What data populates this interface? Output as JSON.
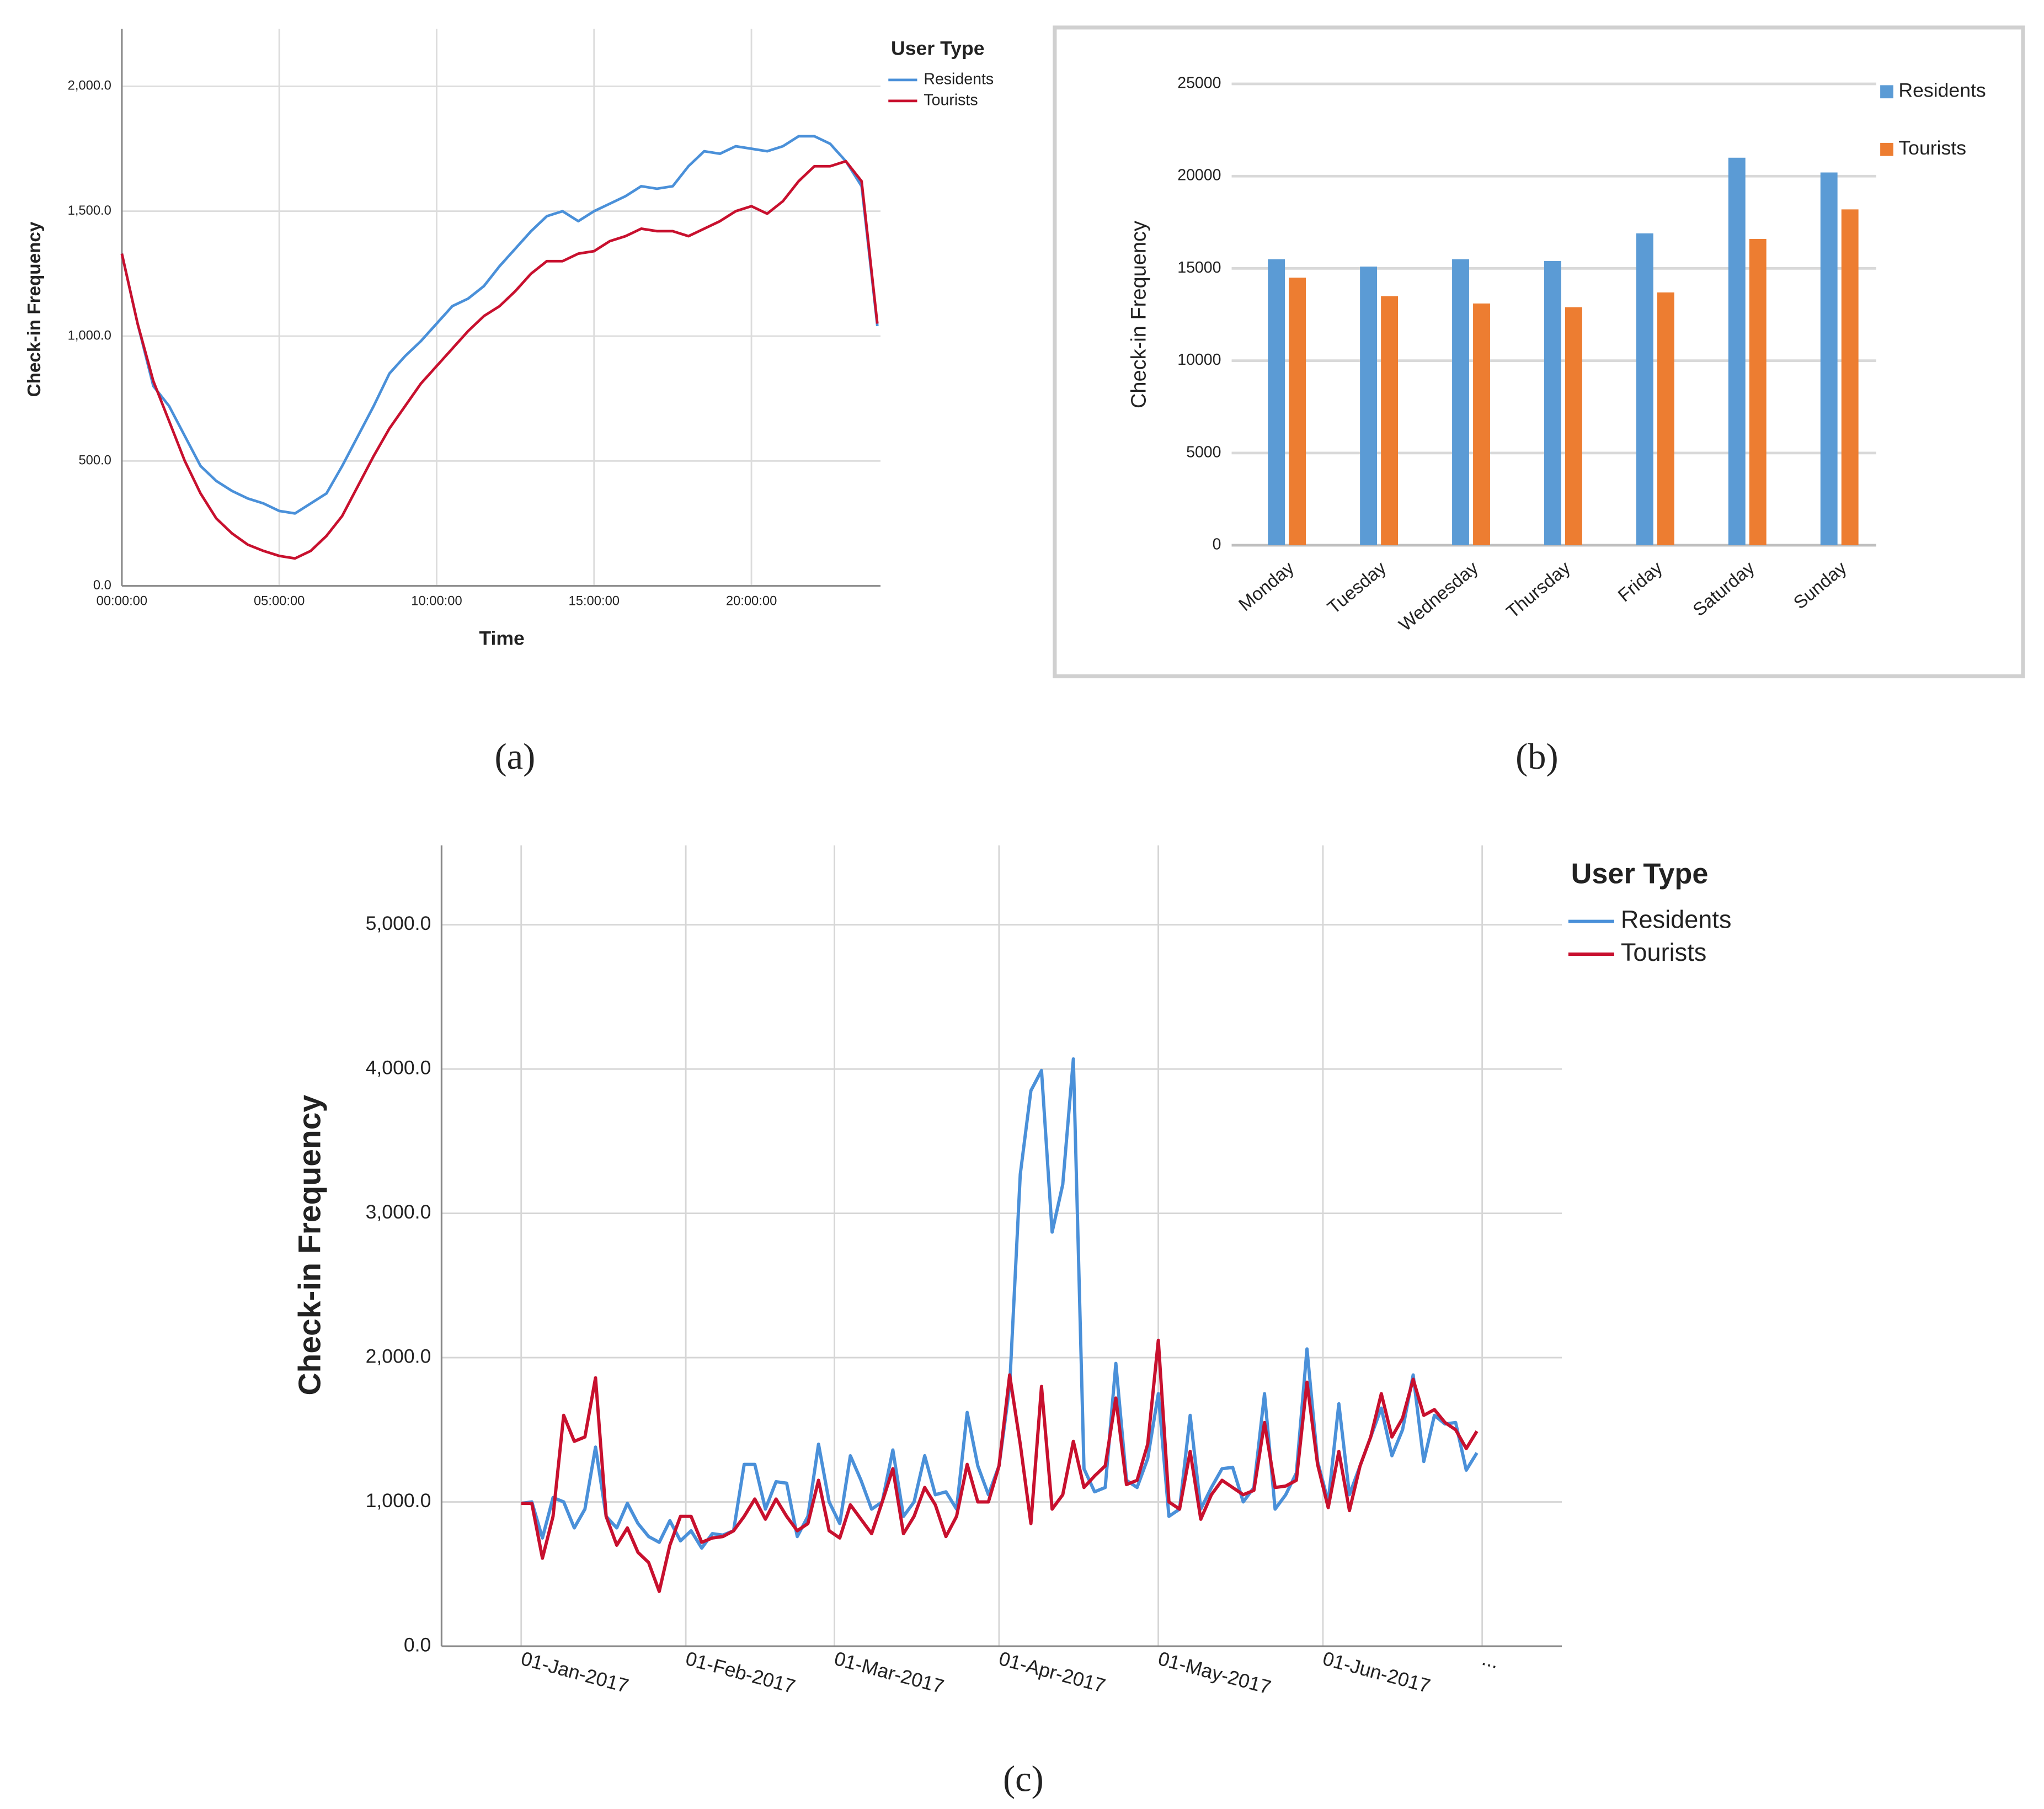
{
  "chart_data": [
    {
      "type": "line",
      "caption": "(a)",
      "xlabel": "Time",
      "ylabel": "Check-in Frequency",
      "legend_title": "User Type",
      "legend": "upper right",
      "grid": true,
      "xlim": [
        0,
        24.1
      ],
      "xticks": [
        {
          "value": 0,
          "label": "00:00:00"
        },
        {
          "value": 5,
          "label": "05:00:00"
        },
        {
          "value": 10,
          "label": "10:00:00"
        },
        {
          "value": 15,
          "label": "15:00:00"
        },
        {
          "value": 20,
          "label": "20:00:00"
        }
      ],
      "ylim": [
        0,
        2230
      ],
      "yticks": [
        {
          "value": 0,
          "label": "0.0"
        },
        {
          "value": 500,
          "label": "500.0"
        },
        {
          "value": 1000,
          "label": "1,000.0"
        },
        {
          "value": 1500,
          "label": "1,500.0"
        },
        {
          "value": 2000,
          "label": "2,000.0"
        }
      ],
      "x": [
        0,
        0.5,
        1,
        1.5,
        2,
        2.5,
        3,
        3.5,
        4,
        4.5,
        5,
        5.5,
        6,
        6.5,
        7,
        7.5,
        8,
        8.5,
        9,
        9.5,
        10,
        10.5,
        11,
        11.5,
        12,
        12.5,
        13,
        13.5,
        14,
        14.5,
        15,
        15.5,
        16,
        16.5,
        17,
        17.5,
        18,
        18.5,
        19,
        19.5,
        20,
        20.5,
        21,
        21.5,
        22,
        22.5,
        23,
        23.5,
        24
      ],
      "series": [
        {
          "name": "Residents",
          "color": "#4a90d9",
          "values": [
            1330,
            1050,
            800,
            720,
            600,
            480,
            420,
            380,
            350,
            330,
            300,
            290,
            330,
            370,
            480,
            600,
            720,
            850,
            920,
            980,
            1050,
            1120,
            1150,
            1200,
            1280,
            1350,
            1420,
            1480,
            1500,
            1460,
            1500,
            1530,
            1560,
            1600,
            1590,
            1600,
            1680,
            1740,
            1730,
            1760,
            1750,
            1740,
            1760,
            1800,
            1800,
            1770,
            1700,
            1600,
            1040
          ]
        },
        {
          "name": "Tourists",
          "color": "#c8102e",
          "values": [
            1330,
            1050,
            820,
            660,
            500,
            370,
            270,
            210,
            165,
            140,
            120,
            110,
            140,
            200,
            280,
            400,
            520,
            630,
            720,
            810,
            880,
            950,
            1020,
            1080,
            1120,
            1180,
            1250,
            1300,
            1300,
            1330,
            1340,
            1380,
            1400,
            1430,
            1420,
            1420,
            1400,
            1430,
            1460,
            1500,
            1520,
            1490,
            1540,
            1620,
            1680,
            1680,
            1700,
            1620,
            1050
          ]
        }
      ]
    },
    {
      "type": "bar",
      "caption": "(b)",
      "ylabel": "Check-in Frequency",
      "legend": "upper right",
      "grid": true,
      "categories": [
        "Monday",
        "Tuesday",
        "Wednesday",
        "Thursday",
        "Friday",
        "Saturday",
        "Sunday"
      ],
      "ylim": [
        0,
        25000
      ],
      "yticks": [
        0,
        5000,
        10000,
        15000,
        20000,
        25000
      ],
      "series": [
        {
          "name": "Residents",
          "color": "#5b9bd5",
          "values": [
            15500,
            15100,
            15500,
            15400,
            16900,
            21000,
            20200
          ]
        },
        {
          "name": "Tourists",
          "color": "#ed7d31",
          "values": [
            14500,
            13500,
            13100,
            12900,
            13700,
            16600,
            18200
          ]
        }
      ]
    },
    {
      "type": "line",
      "caption": "(c)",
      "ylabel": "Check-in Frequency",
      "legend_title": "User Type",
      "legend": "upper right",
      "grid": true,
      "xlim": [
        "2016-12-17",
        "2017-07-16"
      ],
      "xticks": [
        {
          "value": "2017-01-01",
          "label": "01-Jan-2017"
        },
        {
          "value": "2017-02-01",
          "label": "01-Feb-2017"
        },
        {
          "value": "2017-03-01",
          "label": "01-Mar-2017"
        },
        {
          "value": "2017-04-01",
          "label": "01-Apr-2017"
        },
        {
          "value": "2017-05-01",
          "label": "01-May-2017"
        },
        {
          "value": "2017-06-01",
          "label": "01-Jun-2017"
        },
        {
          "value": "2017-07-01",
          "label": "..."
        }
      ],
      "ylim": [
        0,
        5550
      ],
      "yticks": [
        {
          "value": 0,
          "label": "0.0"
        },
        {
          "value": 1000,
          "label": "1,000.0"
        },
        {
          "value": 2000,
          "label": "2,000.0"
        },
        {
          "value": 3000,
          "label": "3,000.0"
        },
        {
          "value": 4000,
          "label": "4,000.0"
        },
        {
          "value": 5000,
          "label": "5,000.0"
        }
      ],
      "x": [
        "2017-01-01",
        "2017-01-03",
        "2017-01-05",
        "2017-01-07",
        "2017-01-09",
        "2017-01-11",
        "2017-01-13",
        "2017-01-15",
        "2017-01-17",
        "2017-01-19",
        "2017-01-21",
        "2017-01-23",
        "2017-01-25",
        "2017-01-27",
        "2017-01-29",
        "2017-01-31",
        "2017-02-02",
        "2017-02-04",
        "2017-02-06",
        "2017-02-08",
        "2017-02-10",
        "2017-02-12",
        "2017-02-14",
        "2017-02-16",
        "2017-02-18",
        "2017-02-20",
        "2017-02-22",
        "2017-02-24",
        "2017-02-26",
        "2017-02-28",
        "2017-03-02",
        "2017-03-04",
        "2017-03-06",
        "2017-03-08",
        "2017-03-10",
        "2017-03-12",
        "2017-03-14",
        "2017-03-16",
        "2017-03-18",
        "2017-03-20",
        "2017-03-22",
        "2017-03-24",
        "2017-03-26",
        "2017-03-28",
        "2017-03-30",
        "2017-04-01",
        "2017-04-03",
        "2017-04-05",
        "2017-04-07",
        "2017-04-09",
        "2017-04-11",
        "2017-04-13",
        "2017-04-15",
        "2017-04-17",
        "2017-04-19",
        "2017-04-21",
        "2017-04-23",
        "2017-04-25",
        "2017-04-27",
        "2017-04-29",
        "2017-05-01",
        "2017-05-03",
        "2017-05-05",
        "2017-05-07",
        "2017-05-09",
        "2017-05-11",
        "2017-05-13",
        "2017-05-15",
        "2017-05-17",
        "2017-05-19",
        "2017-05-21",
        "2017-05-23",
        "2017-05-25",
        "2017-05-27",
        "2017-05-29",
        "2017-05-31",
        "2017-06-02",
        "2017-06-04",
        "2017-06-06",
        "2017-06-08",
        "2017-06-10",
        "2017-06-12",
        "2017-06-14",
        "2017-06-16",
        "2017-06-18",
        "2017-06-20",
        "2017-06-22",
        "2017-06-24",
        "2017-06-26",
        "2017-06-28",
        "2017-06-30"
      ],
      "series": [
        {
          "name": "Residents",
          "color": "#4a90d9",
          "values": [
            990,
            1000,
            750,
            1030,
            1000,
            820,
            950,
            1380,
            900,
            820,
            990,
            850,
            760,
            720,
            870,
            730,
            800,
            680,
            780,
            770,
            800,
            1260,
            1260,
            950,
            1140,
            1130,
            760,
            900,
            1400,
            1000,
            850,
            1320,
            1150,
            950,
            1000,
            1360,
            900,
            1000,
            1320,
            1050,
            1070,
            950,
            1620,
            1250,
            1050,
            1250,
            1800,
            3270,
            3850,
            3990,
            2870,
            3200,
            4070,
            1230,
            1070,
            1100,
            1960,
            1150,
            1100,
            1300,
            1750,
            900,
            950,
            1600,
            950,
            1100,
            1230,
            1240,
            1000,
            1100,
            1750,
            950,
            1050,
            1200,
            2060,
            1280,
            1000,
            1680,
            1050,
            1250,
            1450,
            1650,
            1320,
            1500,
            1880,
            1280,
            1600,
            1540,
            1550,
            1220,
            1340
          ]
        },
        {
          "name": "Tourists",
          "color": "#c8102e",
          "values": [
            990,
            990,
            610,
            900,
            1600,
            1420,
            1450,
            1860,
            900,
            700,
            820,
            650,
            580,
            380,
            700,
            900,
            900,
            720,
            750,
            760,
            800,
            900,
            1020,
            880,
            1020,
            900,
            800,
            850,
            1150,
            800,
            750,
            980,
            880,
            780,
            1000,
            1230,
            780,
            900,
            1100,
            980,
            760,
            900,
            1260,
            1000,
            1000,
            1250,
            1880,
            1400,
            850,
            1800,
            950,
            1050,
            1420,
            1100,
            1180,
            1250,
            1720,
            1120,
            1150,
            1400,
            2120,
            1000,
            950,
            1350,
            880,
            1050,
            1150,
            1100,
            1050,
            1080,
            1550,
            1100,
            1110,
            1150,
            1830,
            1260,
            960,
            1350,
            940,
            1250,
            1450,
            1750,
            1450,
            1580,
            1850,
            1600,
            1640,
            1550,
            1500,
            1370,
            1490
          ]
        }
      ]
    }
  ]
}
